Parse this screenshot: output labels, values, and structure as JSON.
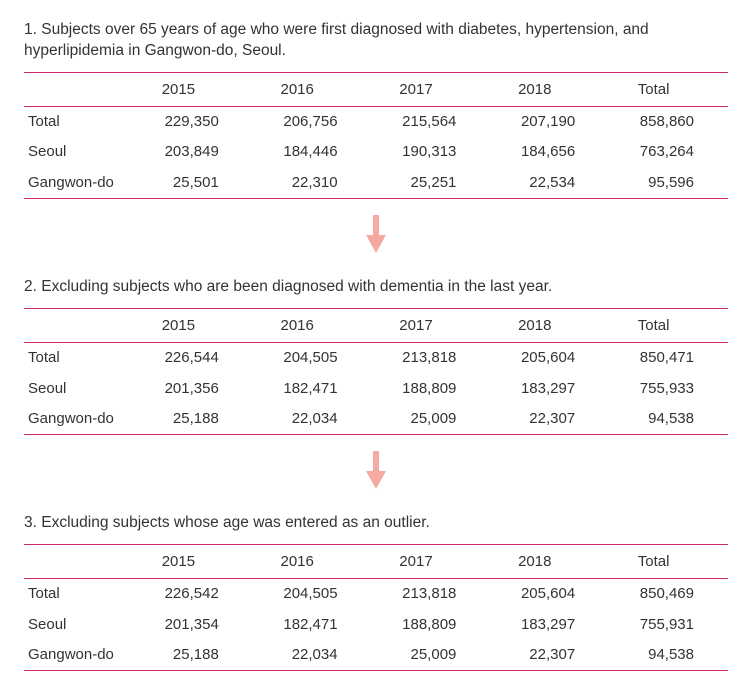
{
  "border_color": "#d6266f",
  "arrow_color": "#f4a9a3",
  "sections": [
    {
      "title": "1. Subjects over 65 years of age who were first diagnosed with diabetes, hypertension, and hyperlipidemia in Gangwon-do, Seoul.",
      "columns": [
        "",
        "2015",
        "2016",
        "2017",
        "2018",
        "Total"
      ],
      "rows": [
        [
          "Total",
          "229,350",
          "206,756",
          "215,564",
          "207,190",
          "858,860"
        ],
        [
          "Seoul",
          "203,849",
          "184,446",
          "190,313",
          "184,656",
          "763,264"
        ],
        [
          "Gangwon-do",
          "25,501",
          "22,310",
          "25,251",
          "22,534",
          "95,596"
        ]
      ]
    },
    {
      "title": "2. Excluding subjects who are been diagnosed with dementia in the last year.",
      "columns": [
        "",
        "2015",
        "2016",
        "2017",
        "2018",
        "Total"
      ],
      "rows": [
        [
          "Total",
          "226,544",
          "204,505",
          "213,818",
          "205,604",
          "850,471"
        ],
        [
          "Seoul",
          "201,356",
          "182,471",
          "188,809",
          "183,297",
          "755,933"
        ],
        [
          "Gangwon-do",
          "25,188",
          "22,034",
          "25,009",
          "22,307",
          "94,538"
        ]
      ]
    },
    {
      "title": "3. Excluding subjects whose age was entered as an outlier.",
      "columns": [
        "",
        "2015",
        "2016",
        "2017",
        "2018",
        "Total"
      ],
      "rows": [
        [
          "Total",
          "226,542",
          "204,505",
          "213,818",
          "205,604",
          "850,469"
        ],
        [
          "Seoul",
          "201,354",
          "182,471",
          "188,809",
          "183,297",
          "755,931"
        ],
        [
          "Gangwon-do",
          "25,188",
          "22,034",
          "25,009",
          "22,307",
          "94,538"
        ]
      ]
    }
  ]
}
